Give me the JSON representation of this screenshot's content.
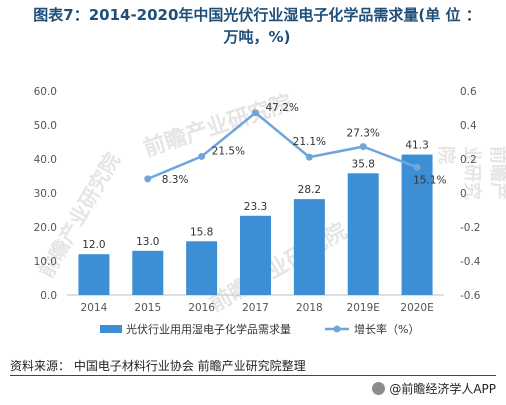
{
  "title": {
    "line1": "图表7：2014-2020年中国光伏行业湿电子化学品需求量(单 位 ：",
    "line2": "万吨，%)"
  },
  "source": "资料来源：  中国电子材料行业协会 前瞻产业研究院整理",
  "brand": "@前瞻经济学人APP",
  "watermark": "前瞻产业研究院",
  "colors": {
    "bar": "#3c8fd4",
    "line": "#6ea6dc",
    "title": "#1f4e79",
    "axis": "#555555"
  },
  "chart_data": {
    "type": "bar+line",
    "categories": [
      "2014",
      "2015",
      "2016",
      "2017",
      "2018",
      "2019E",
      "2020E"
    ],
    "series": [
      {
        "name": "光伏行业用用湿电子化学品需求量",
        "type": "bar",
        "axis": "left",
        "values": [
          12.0,
          13.0,
          15.8,
          23.3,
          28.2,
          35.8,
          41.3
        ],
        "labels": [
          "12.0",
          "13.0",
          "15.8",
          "23.3",
          "28.2",
          "35.8",
          "41.3"
        ]
      },
      {
        "name": "增长率（%）",
        "type": "line",
        "axis": "right",
        "values": [
          null,
          0.083,
          0.215,
          0.472,
          0.211,
          0.273,
          0.151
        ],
        "labels": [
          "",
          "8.3%",
          "21.5%",
          "47.2%",
          "21.1%",
          "27.3%",
          "15.1%"
        ]
      }
    ],
    "y_left": {
      "min": 0,
      "max": 60,
      "ticks": [
        "0.0",
        "10.0",
        "20.0",
        "30.0",
        "40.0",
        "50.0",
        "60.0"
      ]
    },
    "y_right": {
      "min": -0.6,
      "max": 0.6,
      "ticks": [
        "-0.6",
        "-0.4",
        "-0.2",
        "0",
        "0.2",
        "0.4",
        "0.6"
      ]
    },
    "legend_position": "bottom",
    "grid": false
  }
}
